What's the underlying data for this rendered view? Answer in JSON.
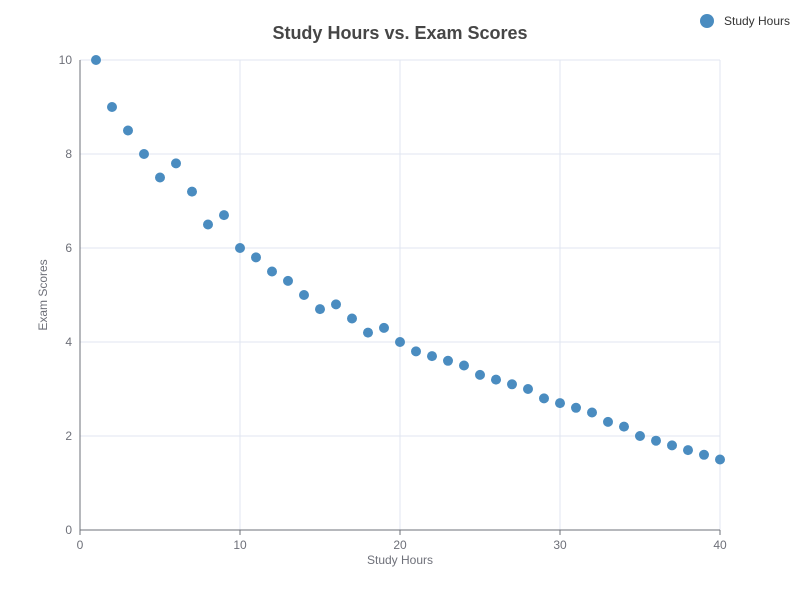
{
  "chart_data": {
    "type": "scatter",
    "title": "Study Hours vs. Exam Scores",
    "xlabel": "Study Hours",
    "ylabel": "Exam Scores",
    "xlim": [
      0,
      40
    ],
    "ylim": [
      0,
      10
    ],
    "x_ticks": [
      0,
      10,
      20,
      30,
      40
    ],
    "y_ticks": [
      0,
      2,
      4,
      6,
      8,
      10
    ],
    "grid": true,
    "legend_position": "top-right",
    "series": [
      {
        "name": "Study Hours",
        "color": "#4a8cc0",
        "x": [
          1,
          2,
          3,
          4,
          5,
          6,
          7,
          8,
          9,
          10,
          11,
          12,
          13,
          14,
          15,
          16,
          17,
          18,
          19,
          20,
          21,
          22,
          23,
          24,
          25,
          26,
          27,
          28,
          29,
          30,
          31,
          32,
          33,
          34,
          35,
          36,
          37,
          38,
          39,
          40
        ],
        "y": [
          10,
          9,
          8.5,
          8,
          7.5,
          7.8,
          7.2,
          6.5,
          6.7,
          6,
          5.8,
          5.5,
          5.3,
          5,
          4.7,
          4.8,
          4.5,
          4.2,
          4.3,
          4,
          3.8,
          3.7,
          3.6,
          3.5,
          3.3,
          3.2,
          3.1,
          3,
          2.8,
          2.7,
          2.6,
          2.5,
          2.3,
          2.2,
          2,
          1.9,
          1.8,
          1.7,
          1.6,
          1.5
        ]
      }
    ]
  }
}
